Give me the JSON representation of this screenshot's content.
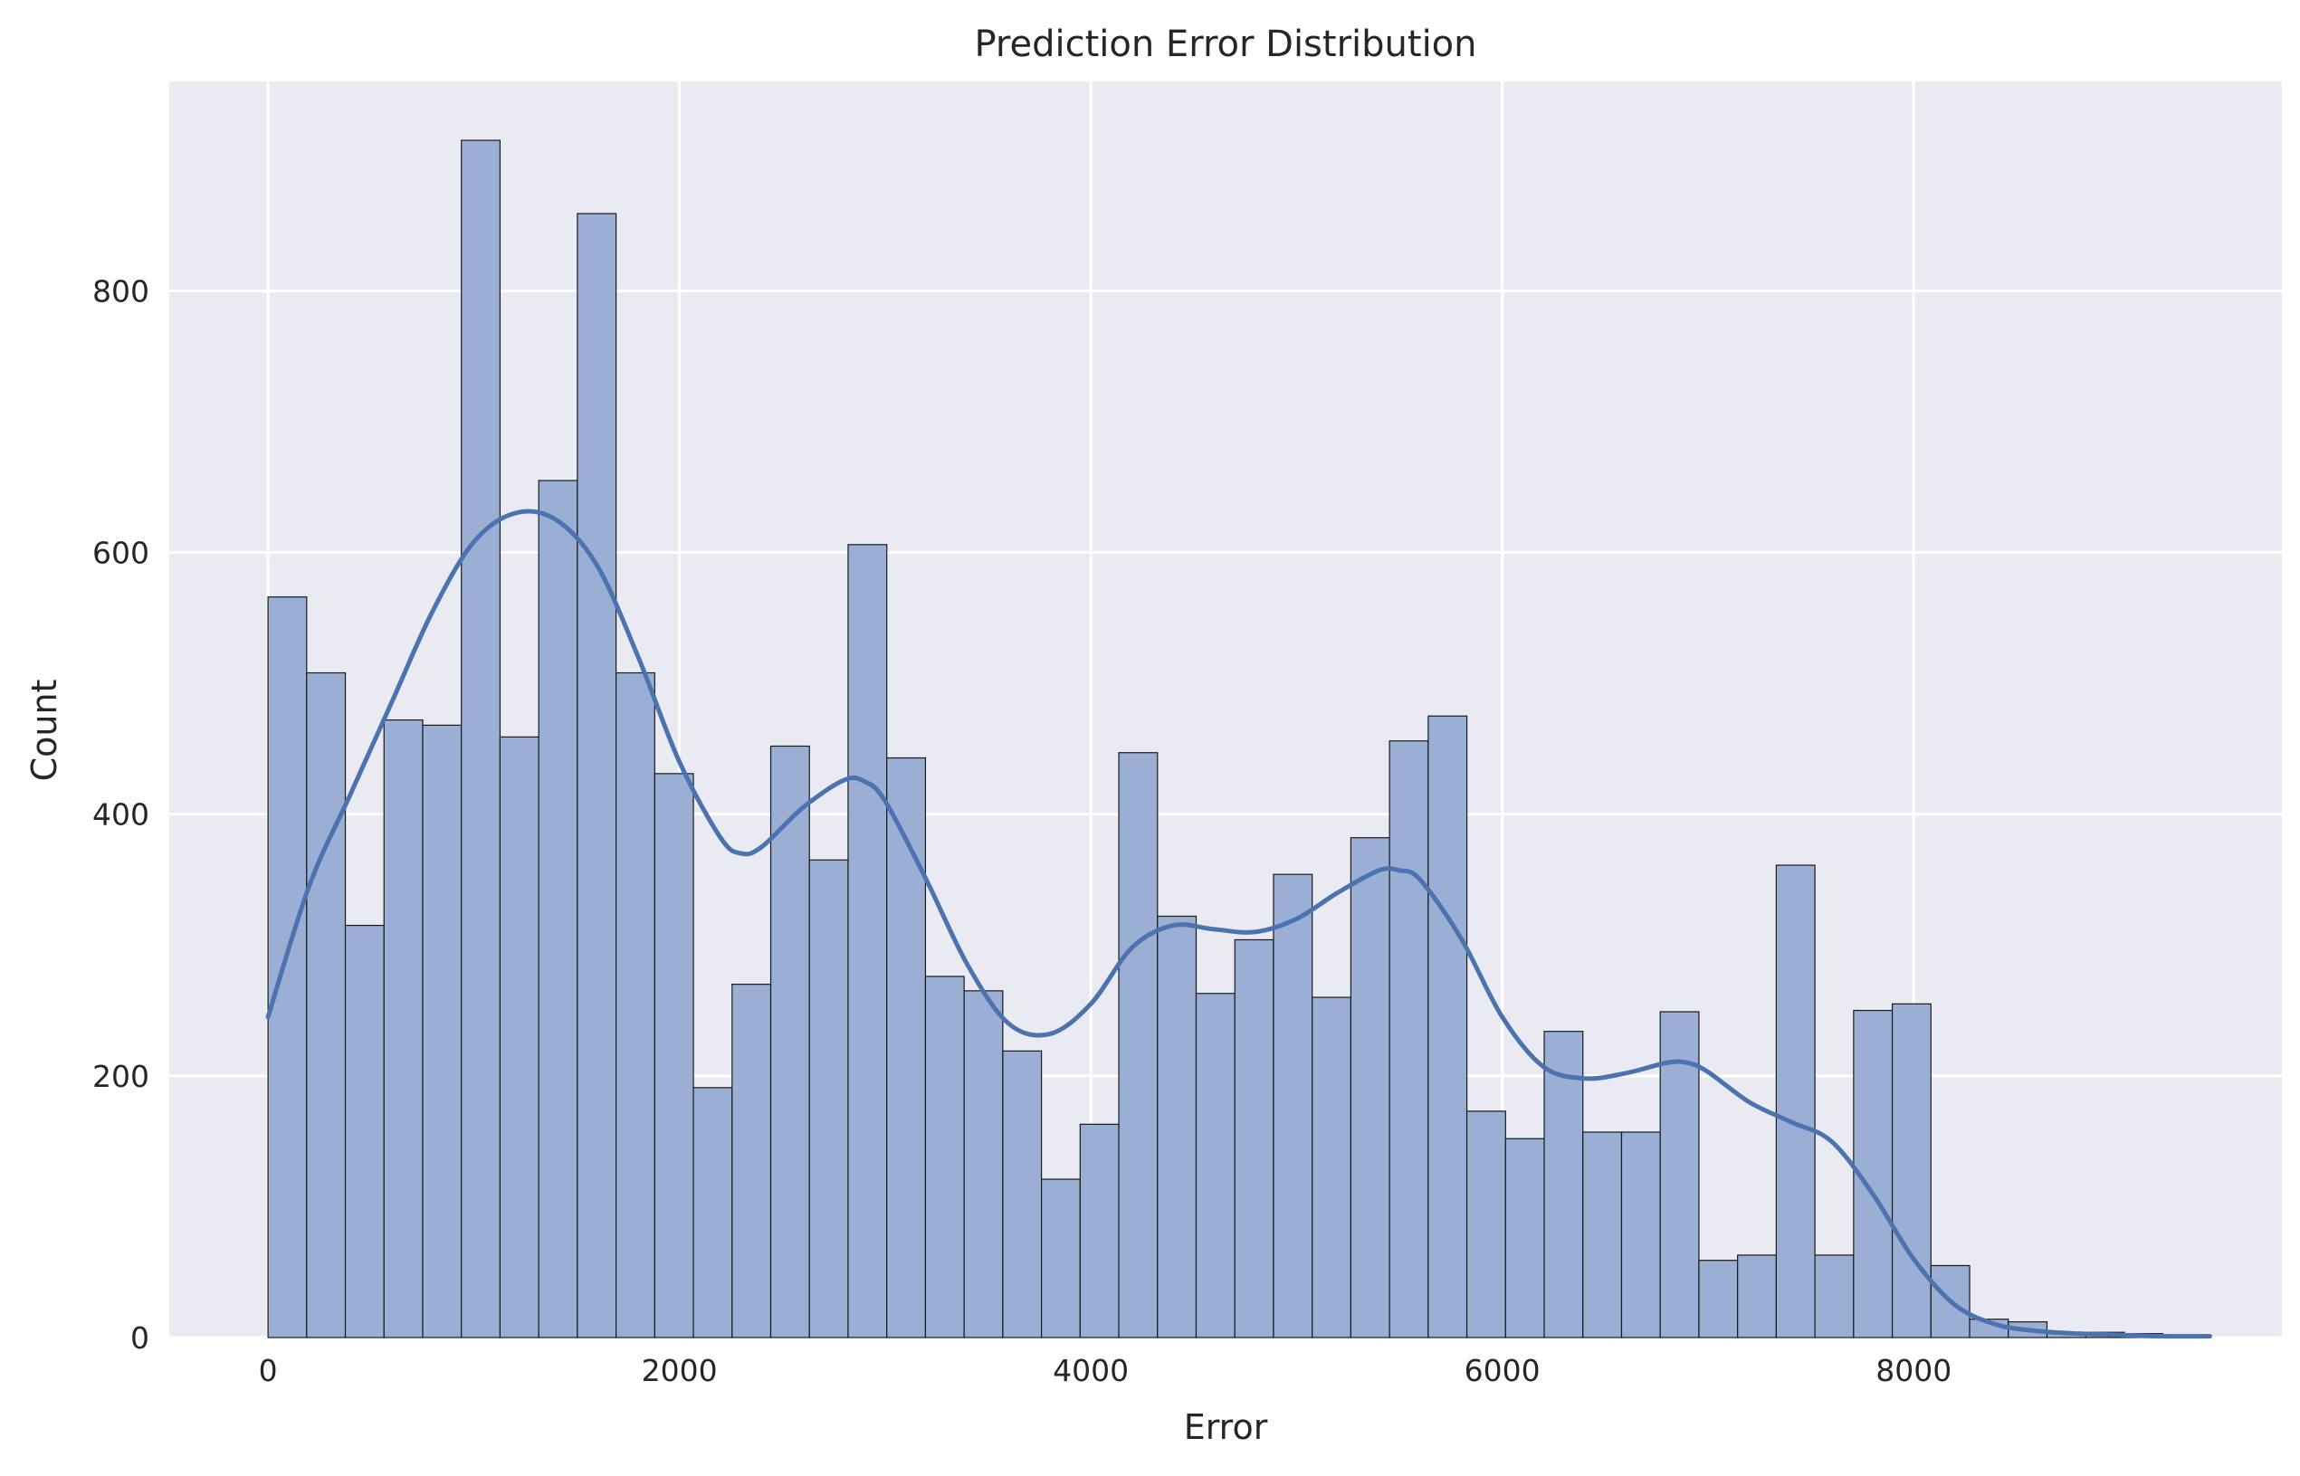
{
  "chart_data": {
    "type": "bar",
    "title": "Prediction Error Distribution",
    "xlabel": "Error",
    "ylabel": "Count",
    "xlim": [
      -480,
      9790
    ],
    "ylim": [
      0,
      960
    ],
    "xticks": [
      0,
      2000,
      4000,
      6000,
      8000
    ],
    "yticks": [
      0,
      200,
      400,
      600,
      800
    ],
    "grid": true,
    "bin_start": 0,
    "bin_width": 188,
    "values": [
      566,
      508,
      315,
      472,
      468,
      915,
      459,
      655,
      859,
      508,
      431,
      191,
      270,
      452,
      365,
      606,
      443,
      276,
      265,
      219,
      121,
      163,
      447,
      322,
      263,
      304,
      354,
      260,
      382,
      456,
      475,
      173,
      152,
      234,
      157,
      157,
      249,
      59,
      63,
      361,
      63,
      250,
      255,
      55,
      14,
      12,
      4,
      4,
      3
    ],
    "kde": {
      "x": [
        0,
        200,
        400,
        600,
        800,
        1000,
        1200,
        1400,
        1600,
        1800,
        2000,
        2200,
        2300,
        2400,
        2600,
        2800,
        2900,
        3000,
        3200,
        3400,
        3600,
        3800,
        4000,
        4200,
        4400,
        4600,
        4800,
        5000,
        5200,
        5400,
        5500,
        5600,
        5800,
        6000,
        6200,
        6400,
        6600,
        6800,
        6900,
        7000,
        7200,
        7400,
        7600,
        7800,
        8000,
        8200,
        8400,
        8600,
        8800,
        9000,
        9200,
        9440
      ],
      "y": [
        245,
        345,
        415,
        485,
        555,
        608,
        630,
        625,
        590,
        520,
        440,
        382,
        370,
        375,
        405,
        426,
        425,
        410,
        350,
        285,
        240,
        232,
        255,
        298,
        315,
        312,
        310,
        320,
        340,
        357,
        357,
        350,
        305,
        245,
        207,
        198,
        202,
        210,
        210,
        203,
        180,
        165,
        150,
        110,
        60,
        25,
        10,
        5,
        3,
        2,
        1,
        1
      ]
    },
    "colors": {
      "plot_background": "#eaeaf2",
      "grid": "#ffffff",
      "bar_fill": "#9aafd3",
      "bar_edge": "#1a1a1a",
      "kde_line": "#4c72b0"
    }
  }
}
